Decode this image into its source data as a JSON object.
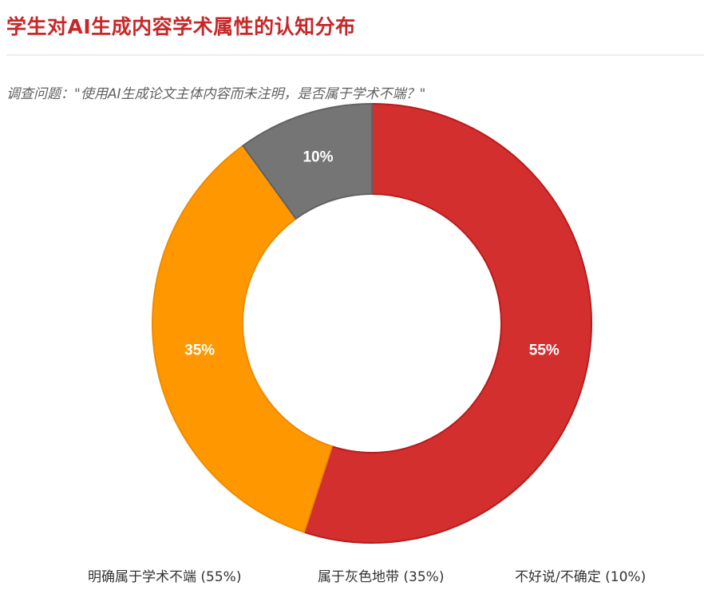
{
  "header": {
    "title": "学生对AI生成内容学术属性的认知分布",
    "subtitle": "调查问题：\"使用AI生成论文主体内容而未注明，是否属于学术不端？\""
  },
  "colors": {
    "title": "#c62828",
    "series": [
      "#d32f2f",
      "#ff9800",
      "#757575"
    ]
  },
  "chart_data": {
    "type": "pie",
    "variant": "donut",
    "categories": [
      "明确属于学术不端",
      "属于灰色地带",
      "不好说/不确定"
    ],
    "values": [
      55,
      35,
      10
    ],
    "unit": "%",
    "data_labels": [
      "55%",
      "35%",
      "10%"
    ],
    "legend": {
      "placement": "bottom",
      "entries": [
        "明确属于学术不端 (55%)",
        "属于灰色地带 (35%)",
        "不好说/不确定 (10%)"
      ]
    }
  }
}
